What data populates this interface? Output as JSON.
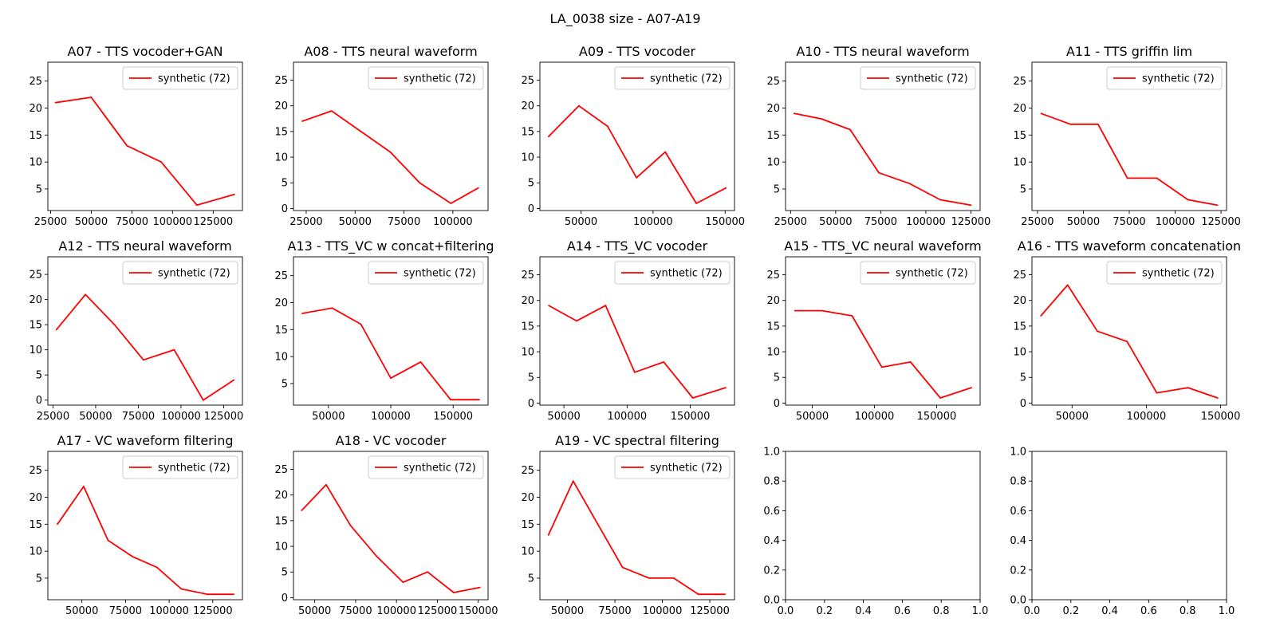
{
  "figure_title": "LA_0038 size - A07-A19",
  "chart_data": [
    {
      "type": "line",
      "title": "A07 - TTS vocoder+GAN",
      "xticks": [
        25000,
        50000,
        75000,
        100000,
        125000
      ],
      "yticks": [
        5,
        10,
        15,
        20,
        25
      ],
      "xlim": [
        23300,
        143000
      ],
      "ylim": [
        1,
        28.5
      ],
      "series": [
        {
          "name": "synthetic (72)",
          "color": "#ff0000",
          "x": [
            28000,
            50000,
            72000,
            93000,
            115000,
            138000
          ],
          "y": [
            21,
            22,
            13,
            10,
            2,
            4
          ]
        }
      ]
    },
    {
      "type": "line",
      "title": "A08 - TTS neural waveform",
      "xticks": [
        25000,
        50000,
        75000,
        100000
      ],
      "yticks": [
        0,
        5,
        10,
        15,
        20,
        25
      ],
      "xlim": [
        18500,
        118000
      ],
      "ylim": [
        -0.4,
        28.5
      ],
      "series": [
        {
          "name": "synthetic (72)",
          "color": "#ff0000",
          "x": [
            23000,
            38000,
            53000,
            68000,
            83000,
            99000,
            113000
          ],
          "y": [
            17,
            19,
            15,
            11,
            5,
            1,
            4
          ]
        }
      ]
    },
    {
      "type": "line",
      "title": "A09 - TTS vocoder",
      "xticks": [
        50000,
        100000,
        150000
      ],
      "yticks": [
        0,
        5,
        10,
        15,
        20,
        25
      ],
      "xlim": [
        21500,
        156500
      ],
      "ylim": [
        -0.4,
        28.5
      ],
      "series": [
        {
          "name": "synthetic (72)",
          "color": "#ff0000",
          "x": [
            27500,
            48500,
            68500,
            88500,
            108500,
            130000,
            150500
          ],
          "y": [
            14,
            20,
            16,
            6,
            11,
            1,
            4
          ]
        }
      ]
    },
    {
      "type": "line",
      "title": "A10 - TTS neural waveform",
      "xticks": [
        25000,
        50000,
        75000,
        100000,
        125000
      ],
      "yticks": [
        5,
        10,
        15,
        20,
        25
      ],
      "xlim": [
        22200,
        130100
      ],
      "ylim": [
        1,
        28.5
      ],
      "series": [
        {
          "name": "synthetic (72)",
          "color": "#ff0000",
          "x": [
            27000,
            42000,
            58000,
            74000,
            91000,
            108000,
            125000
          ],
          "y": [
            19,
            18,
            16,
            8,
            6,
            3,
            2
          ]
        }
      ]
    },
    {
      "type": "line",
      "title": "A11 - TTS griffin lim",
      "xticks": [
        25000,
        50000,
        75000,
        100000,
        125000
      ],
      "yticks": [
        5,
        10,
        15,
        20,
        25
      ],
      "xlim": [
        22000,
        128000
      ],
      "ylim": [
        1,
        28.5
      ],
      "series": [
        {
          "name": "synthetic (72)",
          "color": "#ff0000",
          "x": [
            27000,
            43000,
            58000,
            74000,
            90000,
            107000,
            123000
          ],
          "y": [
            19,
            17,
            17,
            7,
            7,
            3,
            2
          ]
        }
      ]
    },
    {
      "type": "line",
      "title": "A12 - TTS neural waveform",
      "xticks": [
        25000,
        50000,
        75000,
        100000,
        125000
      ],
      "yticks": [
        0,
        5,
        10,
        15,
        20,
        25
      ],
      "xlim": [
        22000,
        136000
      ],
      "ylim": [
        -1,
        28.5
      ],
      "series": [
        {
          "name": "synthetic (72)",
          "color": "#ff0000",
          "x": [
            27000,
            44000,
            61000,
            78000,
            96000,
            113000,
            131000
          ],
          "y": [
            14,
            21,
            15,
            8,
            10,
            0,
            4
          ]
        }
      ]
    },
    {
      "type": "line",
      "title": "A13 - TTS_VC w concat+filtering",
      "xticks": [
        50000,
        100000,
        150000
      ],
      "yticks": [
        5,
        10,
        15,
        20,
        25
      ],
      "xlim": [
        22000,
        178000
      ],
      "ylim": [
        1,
        28.5
      ],
      "series": [
        {
          "name": "synthetic (72)",
          "color": "#ff0000",
          "x": [
            29000,
            53000,
            76000,
            100000,
            124000,
            148000,
            171000
          ],
          "y": [
            18,
            19,
            16,
            6,
            9,
            2,
            2
          ]
        }
      ]
    },
    {
      "type": "line",
      "title": "A14 - TTS_VC vocoder",
      "xticks": [
        50000,
        100000,
        150000
      ],
      "yticks": [
        0,
        5,
        10,
        15,
        20,
        25
      ],
      "xlim": [
        31000,
        185000
      ],
      "ylim": [
        -0.4,
        28.5
      ],
      "series": [
        {
          "name": "synthetic (72)",
          "color": "#ff0000",
          "x": [
            38000,
            60000,
            83000,
            106000,
            129000,
            152000,
            178000
          ],
          "y": [
            19,
            16,
            19,
            6,
            8,
            1,
            3
          ]
        }
      ]
    },
    {
      "type": "line",
      "title": "A15 - TTS_VC neural waveform",
      "xticks": [
        50000,
        100000,
        150000
      ],
      "yticks": [
        0,
        5,
        10,
        15,
        20,
        25
      ],
      "xlim": [
        28500,
        185000
      ],
      "ylim": [
        -0.4,
        28.5
      ],
      "series": [
        {
          "name": "synthetic (72)",
          "color": "#ff0000",
          "x": [
            36000,
            58000,
            82000,
            106000,
            129000,
            153000,
            178000
          ],
          "y": [
            18,
            18,
            17,
            7,
            8,
            1,
            3
          ]
        }
      ]
    },
    {
      "type": "line",
      "title": "A16 - TTS waveform concatenation",
      "xticks": [
        50000,
        100000,
        150000
      ],
      "yticks": [
        0,
        5,
        10,
        15,
        20,
        25
      ],
      "xlim": [
        23000,
        154000
      ],
      "ylim": [
        -0.4,
        28.5
      ],
      "series": [
        {
          "name": "synthetic (72)",
          "color": "#ff0000",
          "x": [
            29000,
            47000,
            67000,
            87000,
            107000,
            128000,
            148000
          ],
          "y": [
            17,
            23,
            14,
            12,
            2,
            3,
            1
          ]
        }
      ]
    },
    {
      "type": "line",
      "title": "A17 - VC waveform filtering",
      "xticks": [
        50000,
        75000,
        100000,
        125000
      ],
      "yticks": [
        5,
        10,
        15,
        20,
        25
      ],
      "xlim": [
        30500,
        142000
      ],
      "ylim": [
        1,
        28.5
      ],
      "series": [
        {
          "name": "synthetic (72)",
          "color": "#ff0000",
          "x": [
            36000,
            51000,
            65000,
            79000,
            93000,
            107000,
            122000,
            137000
          ],
          "y": [
            15,
            22,
            12,
            9,
            7,
            3,
            2,
            2
          ]
        }
      ]
    },
    {
      "type": "line",
      "title": "A18 - VC vocoder",
      "xticks": [
        50000,
        75000,
        100000,
        125000,
        150000
      ],
      "yticks": [
        0,
        5,
        10,
        15,
        20,
        25
      ],
      "xlim": [
        37000,
        156000
      ],
      "ylim": [
        -0.4,
        28.5
      ],
      "series": [
        {
          "name": "synthetic (72)",
          "color": "#ff0000",
          "x": [
            42000,
            57000,
            72000,
            88000,
            104000,
            119000,
            135000,
            151000
          ],
          "y": [
            17,
            22,
            14,
            8,
            3,
            5,
            1,
            2
          ]
        }
      ]
    },
    {
      "type": "line",
      "title": "A19 - VC spectral filtering",
      "xticks": [
        50000,
        75000,
        100000,
        125000
      ],
      "yticks": [
        5,
        10,
        15,
        20,
        25
      ],
      "xlim": [
        35500,
        138000
      ],
      "ylim": [
        1,
        28.5
      ],
      "series": [
        {
          "name": "synthetic (72)",
          "color": "#ff0000",
          "x": [
            40000,
            53000,
            66000,
            79000,
            93000,
            106000,
            119000,
            133000
          ],
          "y": [
            13,
            23,
            15,
            7,
            5,
            5,
            2,
            2
          ]
        }
      ]
    },
    {
      "type": "empty",
      "title": "",
      "xticks": [
        0.0,
        0.2,
        0.4,
        0.6,
        0.8,
        1.0
      ],
      "yticks": [
        0.0,
        0.2,
        0.4,
        0.6,
        0.8,
        1.0
      ],
      "xlim": [
        0,
        1
      ],
      "ylim": [
        0,
        1
      ],
      "series": []
    },
    {
      "type": "empty",
      "title": "",
      "xticks": [
        0.0,
        0.2,
        0.4,
        0.6,
        0.8,
        1.0
      ],
      "yticks": [
        0.0,
        0.2,
        0.4,
        0.6,
        0.8,
        1.0
      ],
      "xlim": [
        0,
        1
      ],
      "ylim": [
        0,
        1
      ],
      "series": []
    }
  ]
}
